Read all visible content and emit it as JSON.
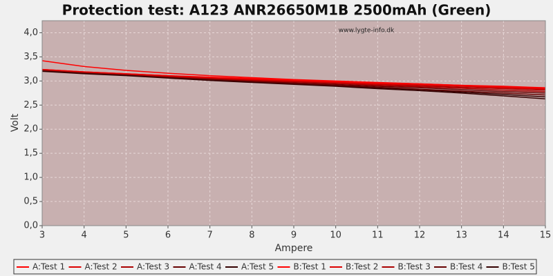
{
  "chart_data": {
    "type": "line",
    "title": "Protection test: A123 ANR26650M1B 2500mAh (Green)",
    "watermark": "www.lygte-info.dk",
    "xlabel": "Ampere",
    "ylabel": "Volt",
    "x": [
      3,
      4,
      5,
      6,
      7,
      8,
      9,
      10,
      11,
      12,
      13,
      14,
      15
    ],
    "xlim": [
      3,
      15
    ],
    "xticks": [
      3,
      4,
      5,
      6,
      7,
      8,
      9,
      10,
      11,
      12,
      13,
      14,
      15
    ],
    "ylim": [
      0,
      4.25
    ],
    "yticks": [
      {
        "value": 0,
        "label": "0,0"
      },
      {
        "value": 0.5,
        "label": "0,5"
      },
      {
        "value": 1,
        "label": "1,0"
      },
      {
        "value": 1.5,
        "label": "1,5"
      },
      {
        "value": 2,
        "label": "2,0"
      },
      {
        "value": 2.5,
        "label": "2,5"
      },
      {
        "value": 3,
        "label": "3,0"
      },
      {
        "value": 3.5,
        "label": "3,5"
      },
      {
        "value": 4,
        "label": "4,0"
      }
    ],
    "grid": true,
    "legend": "bottom",
    "series": [
      {
        "name": "A:Test 1",
        "color": "#ff0000",
        "values": [
          3.42,
          3.3,
          3.22,
          3.16,
          3.11,
          3.07,
          3.03,
          3.0,
          2.97,
          2.94,
          2.91,
          2.88,
          2.85
        ]
      },
      {
        "name": "A:Test 2",
        "color": "#dd0000",
        "values": [
          3.24,
          3.19,
          3.15,
          3.11,
          3.07,
          3.04,
          3.01,
          2.98,
          2.95,
          2.93,
          2.9,
          2.87,
          2.84
        ]
      },
      {
        "name": "A:Test 3",
        "color": "#aa0000",
        "values": [
          3.23,
          3.18,
          3.14,
          3.1,
          3.06,
          3.02,
          2.99,
          2.96,
          2.93,
          2.9,
          2.87,
          2.84,
          2.81
        ]
      },
      {
        "name": "A:Test 4",
        "color": "#660000",
        "values": [
          3.22,
          3.17,
          3.13,
          3.08,
          3.04,
          3.0,
          2.96,
          2.93,
          2.89,
          2.86,
          2.82,
          2.78,
          2.75
        ]
      },
      {
        "name": "A:Test 5",
        "color": "#330000",
        "values": [
          3.21,
          3.16,
          3.12,
          3.07,
          3.02,
          2.98,
          2.94,
          2.9,
          2.86,
          2.82,
          2.77,
          2.72,
          2.67
        ]
      },
      {
        "name": "B:Test 1",
        "color": "#ff0000",
        "values": [
          3.24,
          3.19,
          3.15,
          3.11,
          3.08,
          3.05,
          3.02,
          2.99,
          2.96,
          2.94,
          2.91,
          2.89,
          2.86
        ]
      },
      {
        "name": "B:Test 2",
        "color": "#dd0000",
        "values": [
          3.23,
          3.18,
          3.14,
          3.1,
          3.06,
          3.03,
          3.0,
          2.97,
          2.94,
          2.92,
          2.89,
          2.86,
          2.83
        ]
      },
      {
        "name": "B:Test 3",
        "color": "#aa0000",
        "values": [
          3.22,
          3.17,
          3.13,
          3.09,
          3.05,
          3.01,
          2.98,
          2.95,
          2.91,
          2.88,
          2.85,
          2.81,
          2.78
        ]
      },
      {
        "name": "B:Test 4",
        "color": "#660000",
        "values": [
          3.21,
          3.16,
          3.12,
          3.07,
          3.03,
          2.99,
          2.95,
          2.91,
          2.87,
          2.83,
          2.79,
          2.75,
          2.71
        ]
      },
      {
        "name": "B:Test 5",
        "color": "#330000",
        "values": [
          3.2,
          3.15,
          3.11,
          3.06,
          3.01,
          2.97,
          2.93,
          2.89,
          2.84,
          2.8,
          2.75,
          2.69,
          2.63
        ]
      }
    ]
  }
}
